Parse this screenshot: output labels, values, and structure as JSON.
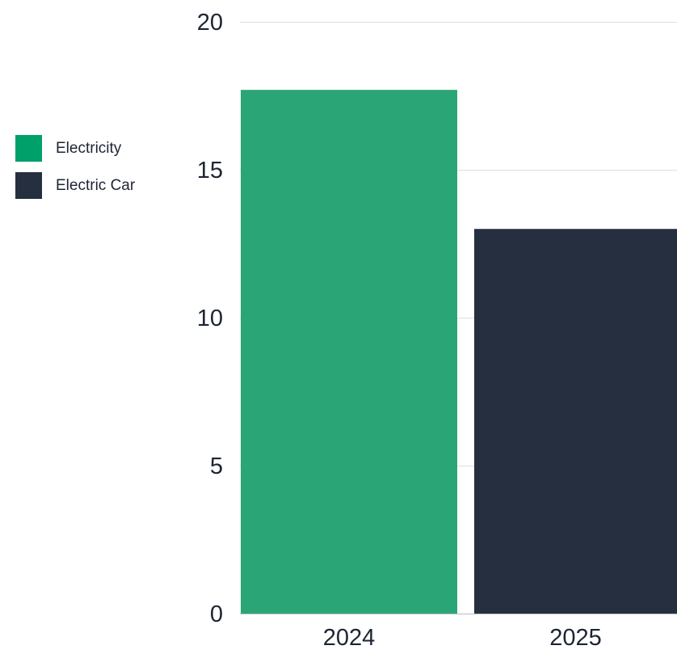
{
  "chart_data": {
    "type": "bar",
    "categories": [
      "2024",
      "2025"
    ],
    "series": [
      {
        "name": "Electricity",
        "values": [
          17.7,
          null
        ]
      },
      {
        "name": "Electric Car",
        "values": [
          null,
          13.0
        ]
      }
    ],
    "title": "",
    "xlabel": "",
    "ylabel": "",
    "ylim": [
      0,
      20
    ],
    "yticks": [
      "0",
      "5",
      "10",
      "15",
      "20"
    ],
    "grid": true,
    "legend_position": "left"
  },
  "colors": {
    "electricity": "#2aa575",
    "electricity_swatch": "#00a06a",
    "electric_car": "#252f40",
    "grid": "#dcdfe3",
    "axis": "#b8bcc2",
    "tick_text": "#1d2433"
  }
}
